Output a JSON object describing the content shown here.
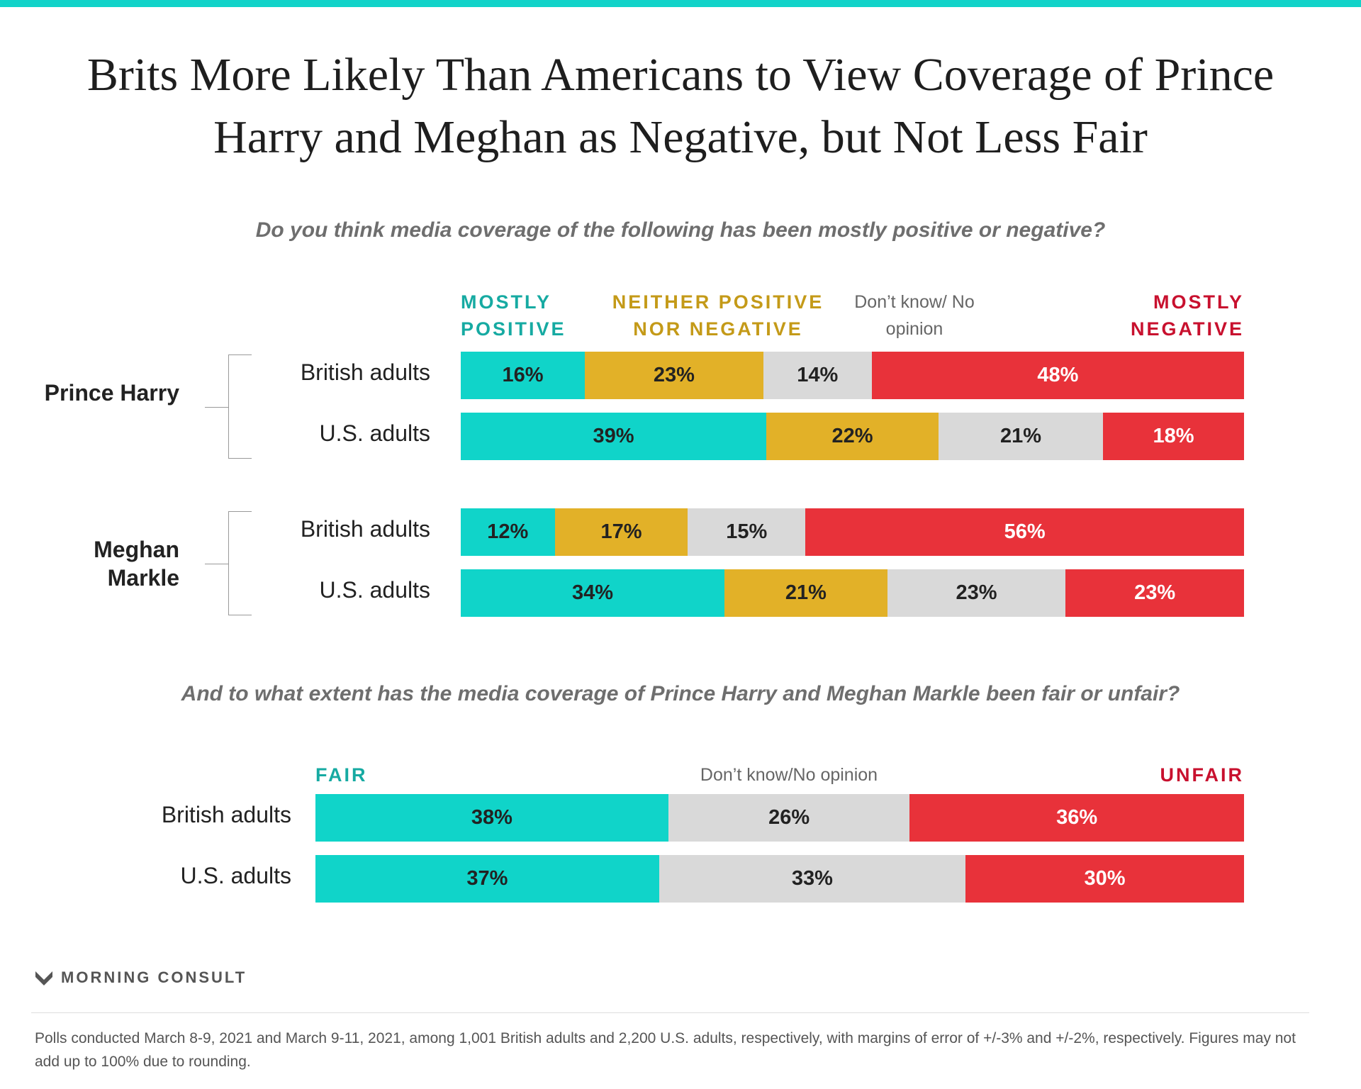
{
  "header": {
    "title": "Brits More Likely Than Americans to View Coverage of Prince Harry and Meghan as Negative, but Not Less Fair"
  },
  "chart_data": [
    {
      "type": "bar",
      "orientation": "horizontal",
      "stacked": true,
      "subtitle": "Do you think media coverage of the following has been mostly positive or negative?",
      "groups": [
        {
          "name": "Prince Harry",
          "categories": [
            "British adults",
            "U.S. adults"
          ]
        },
        {
          "name": "Meghan Markle",
          "categories": [
            "British adults",
            "U.S. adults"
          ]
        }
      ],
      "series": [
        {
          "name": "MOSTLY POSITIVE",
          "color": "#10d4c9",
          "legend_color": "#16aaa2",
          "label_color": "#222222",
          "values": [
            16,
            39,
            12,
            34
          ],
          "value_labels": [
            "16%",
            "39%",
            "12%",
            "34%"
          ]
        },
        {
          "name": "NEITHER POSITIVE NOR NEGATIVE",
          "color": "#e2b128",
          "legend_color": "#c49a18",
          "label_color": "#222222",
          "values": [
            23,
            22,
            17,
            21
          ],
          "value_labels": [
            "23%",
            "22%",
            "17%",
            "21%"
          ]
        },
        {
          "name": "Don’t know/ No opinion",
          "color": "#d9d9d9",
          "legend_color": "#666666",
          "label_color": "#222222",
          "values": [
            14,
            21,
            15,
            23
          ],
          "value_labels": [
            "14%",
            "21%",
            "15%",
            "23%"
          ]
        },
        {
          "name": "MOSTLY NEGATIVE",
          "color": "#e8323a",
          "legend_color": "#c8102e",
          "label_color": "#ffffff",
          "values": [
            48,
            18,
            56,
            23
          ],
          "value_labels": [
            "48%",
            "18%",
            "56%",
            "23%"
          ]
        }
      ]
    },
    {
      "type": "bar",
      "orientation": "horizontal",
      "stacked": true,
      "subtitle": "And to what extent has the media coverage of Prince Harry and Meghan Markle been fair or unfair?",
      "groups": [
        {
          "categories": [
            "British adults",
            "U.S. adults"
          ]
        }
      ],
      "series": [
        {
          "name": "FAIR",
          "color": "#10d4c9",
          "legend_color": "#16aaa2",
          "label_color": "#222222",
          "values": [
            38,
            37
          ],
          "value_labels": [
            "38%",
            "37%"
          ]
        },
        {
          "name": "Don’t know/No opinion",
          "color": "#d9d9d9",
          "legend_color": "#666666",
          "label_color": "#222222",
          "values": [
            26,
            33
          ],
          "value_labels": [
            "26%",
            "33%"
          ]
        },
        {
          "name": "UNFAIR",
          "color": "#e8323a",
          "legend_color": "#c8102e",
          "label_color": "#ffffff",
          "values": [
            36,
            30
          ],
          "value_labels": [
            "36%",
            "30%"
          ]
        }
      ]
    }
  ],
  "footer": {
    "brand": "MORNING CONSULT",
    "note": "Polls conducted March 8-9, 2021 and March 9-11, 2021, among 1,001 British adults and 2,200 U.S. adults, respectively, with margins of error of +/-3% and +/-2%, respectively. Figures may not add up to 100% due to rounding."
  }
}
